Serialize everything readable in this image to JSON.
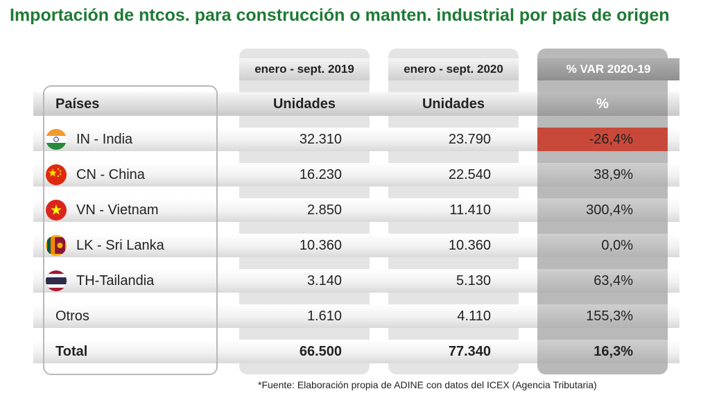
{
  "title": "Importación de ntcos. para construcción o manten. industrial por país de origen",
  "source": "*Fuente: Elaboración propia de ADINE con datos del ICEX (Agencia Tributaria)",
  "periods": [
    "enero - sept. 2019",
    "enero - sept. 2020",
    "% VAR 2020-19"
  ],
  "headers": {
    "country": "Países",
    "u2019": "Unidades",
    "u2020": "Unidades",
    "var": "%"
  },
  "chart_data": {
    "type": "table",
    "title": "Importación de ntcos. para construcción o manten. industrial por país de origen",
    "columns": [
      "Países",
      "enero - sept. 2019 Unidades",
      "enero - sept. 2020 Unidades",
      "% VAR 2020-19"
    ],
    "rows": [
      {
        "country": "IN - India",
        "u2019": "32.310",
        "u2020": "23.790",
        "var": "-26,4%",
        "flag": "india-flag",
        "negative": true
      },
      {
        "country": "CN - China",
        "u2019": "16.230",
        "u2020": "22.540",
        "var": "38,9%",
        "flag": "china-flag"
      },
      {
        "country": "VN - Vietnam",
        "u2019": "2.850",
        "u2020": "11.410",
        "var": "300,4%",
        "flag": "vietnam-flag"
      },
      {
        "country": "LK - Sri Lanka",
        "u2019": "10.360",
        "u2020": "10.360",
        "var": "0,0%",
        "flag": "sri-lanka-flag"
      },
      {
        "country": "TH-Tailandia",
        "u2019": "3.140",
        "u2020": "5.130",
        "var": "63,4%",
        "flag": "thailand-flag"
      },
      {
        "country": "Otros",
        "u2019": "1.610",
        "u2020": "4.110",
        "var": "155,3%"
      }
    ],
    "total": {
      "country": "Total",
      "u2019": "66.500",
      "u2020": "77.340",
      "var": "16,3%"
    }
  },
  "colors": {
    "title": "#1e7a34",
    "negative": "#c8493a",
    "var_column": "#b9b9b9"
  }
}
